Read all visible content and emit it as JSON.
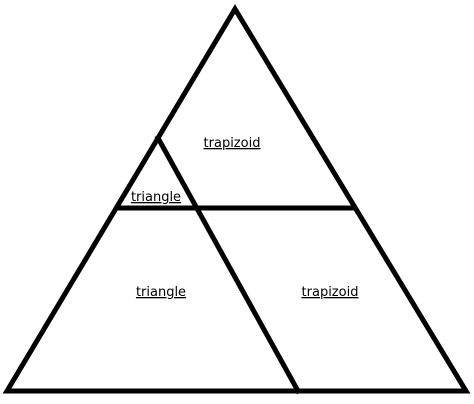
{
  "diagram": {
    "stroke_color": "#000000",
    "background_color": "#ffffff",
    "labels": {
      "top_trapezoid": "trapizoid",
      "small_triangle": "triangle",
      "left_triangle": "triangle",
      "right_trapezoid": "trapizoid"
    }
  }
}
